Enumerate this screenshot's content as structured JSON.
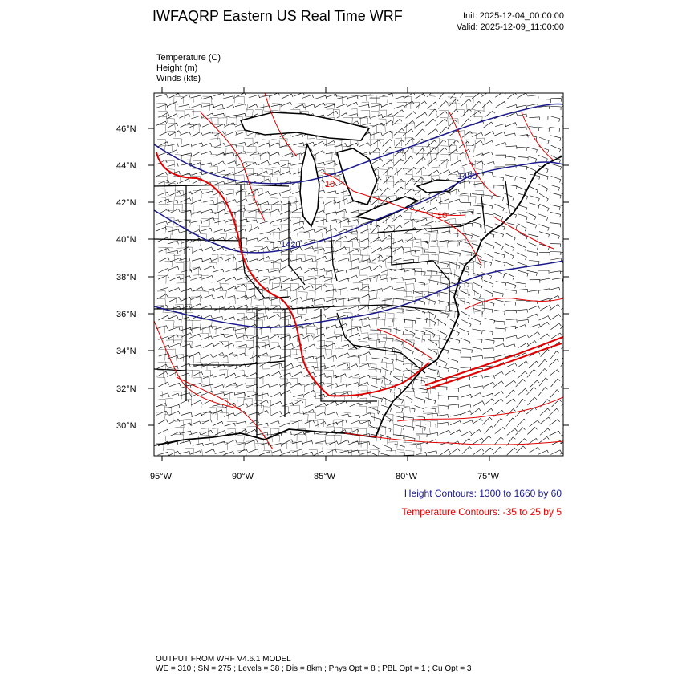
{
  "title": "IWFAQRP Eastern US Real Time WRF",
  "init": "Init: 2025-12-04_00:00:00",
  "valid": "Valid: 2025-12-09_11:00:00",
  "fields": [
    "Temperature   (C)",
    "Height   (m)",
    "Winds   (kts)"
  ],
  "lat_ticks": [
    "46°N",
    "44°N",
    "42°N",
    "40°N",
    "38°N",
    "36°N",
    "34°N",
    "32°N",
    "30°N"
  ],
  "lon_ticks": [
    "95°W",
    "90°W",
    "85°W",
    "80°W",
    "75°W"
  ],
  "contour_labels": [
    "1480",
    "1420",
    "10",
    "10"
  ],
  "height_contours": {
    "text": "Height Contours: 1300 to 1660 by 60",
    "color": "#1a1a8c"
  },
  "temperature_contours": {
    "text": "Temperature Contours: -35 to 25 by 5",
    "color": "#e00000"
  },
  "footer": [
    "OUTPUT FROM WRF V4.6.1 MODEL",
    "WE = 310 ; SN = 275 ; Levels = 38 ; Dis = 8km ; Phys Opt = 8 ; PBL Opt = 1 ; Cu Opt = 3"
  ],
  "colors": {
    "height": "#1a1a8c",
    "temperature": "#e00000",
    "barbs": "#000000"
  }
}
